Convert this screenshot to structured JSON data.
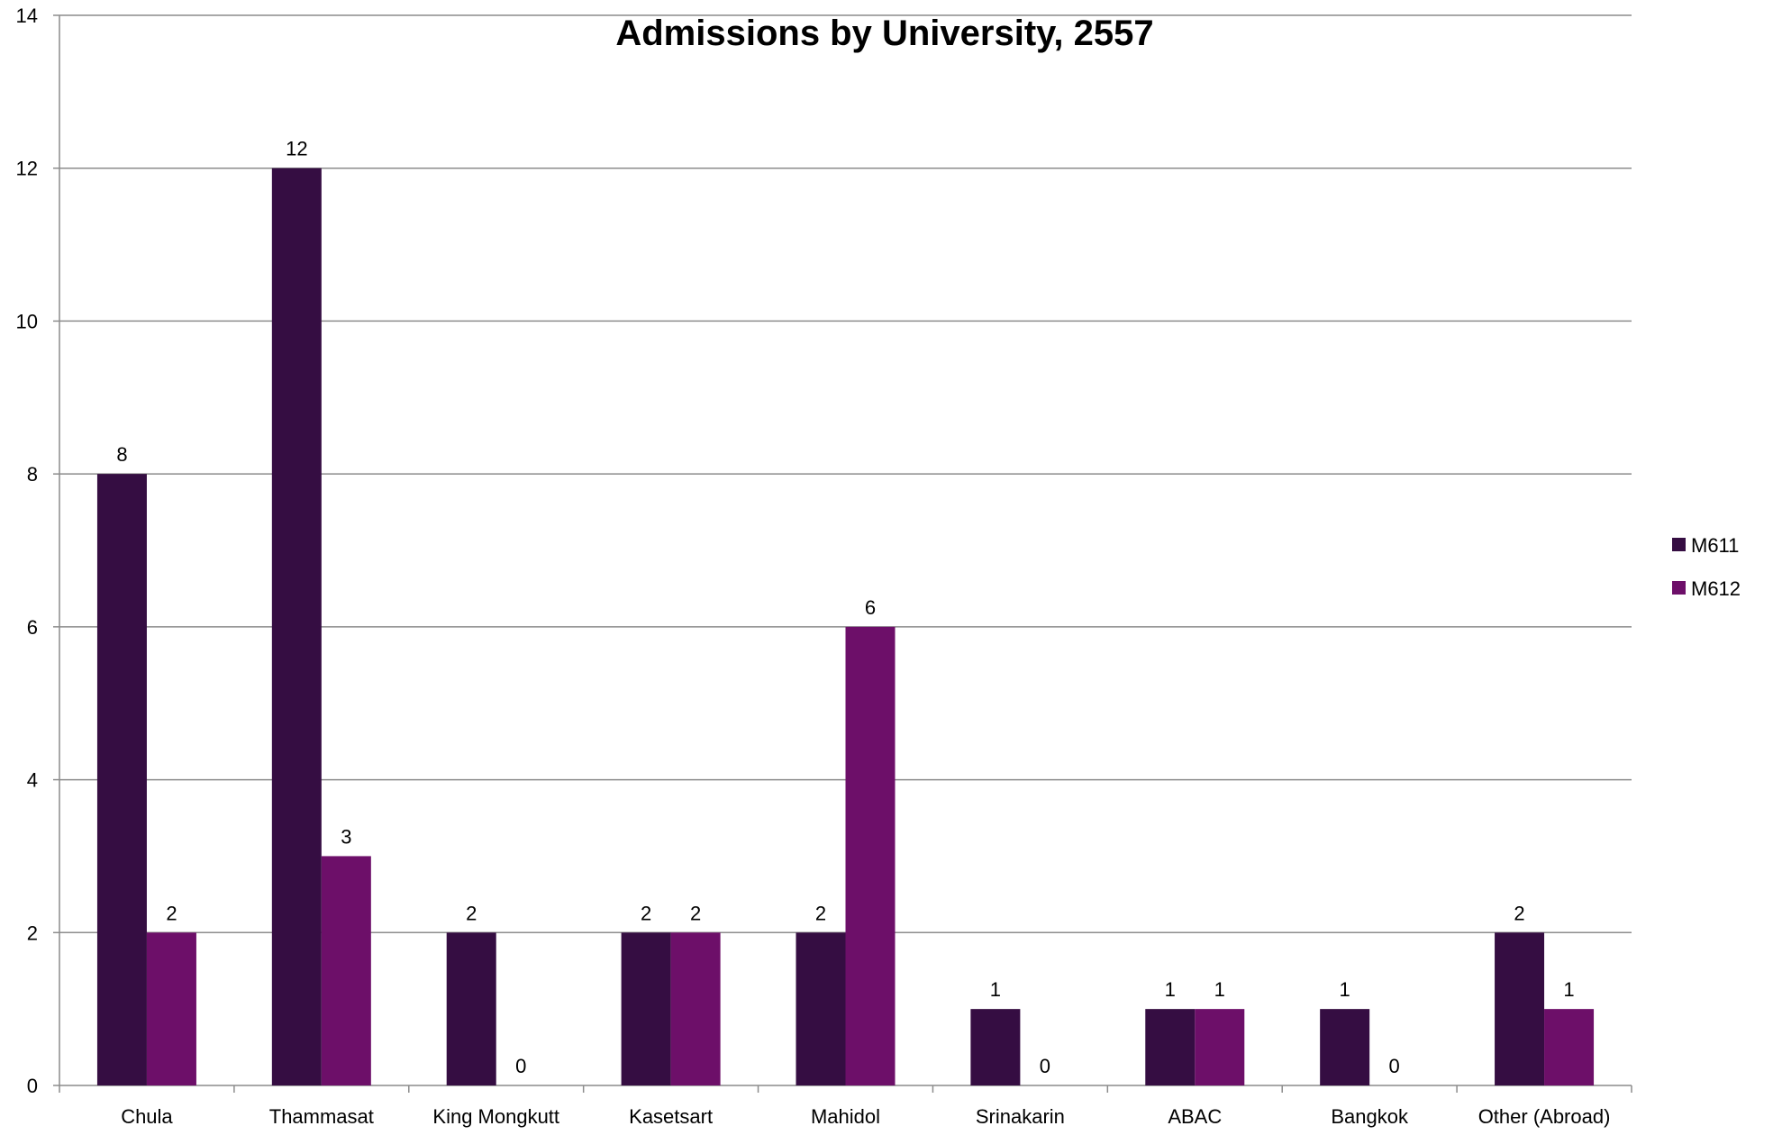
{
  "chart_data": {
    "type": "bar",
    "title": "Admissions by University, 2557",
    "xlabel": "",
    "ylabel": "",
    "ylim": [
      0,
      14
    ],
    "yticks": [
      0,
      2,
      4,
      6,
      8,
      10,
      12,
      14
    ],
    "grid": true,
    "legend_position": "right",
    "categories": [
      "Chula",
      "Thammasat",
      "King Mongkutt",
      "Kasetsart",
      "Mahidol",
      "Srinakarin",
      "ABAC",
      "Bangkok",
      "Other (Abroad)"
    ],
    "series": [
      {
        "name": "M611",
        "color": "#350d42",
        "values": [
          8,
          12,
          2,
          2,
          2,
          1,
          1,
          1,
          2
        ]
      },
      {
        "name": "M612",
        "color": "#6d0f69",
        "values": [
          2,
          3,
          0,
          2,
          6,
          0,
          1,
          0,
          1
        ]
      }
    ]
  }
}
